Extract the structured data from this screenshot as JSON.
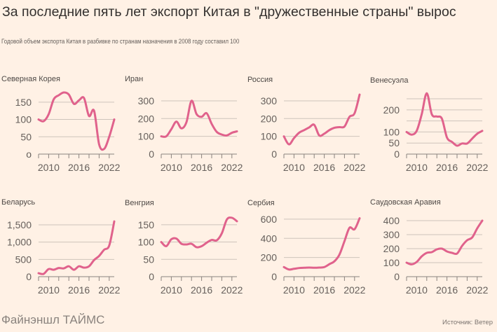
{
  "title": "За последние пять лет экспорт Китая в \"дружественные страны\" вырос",
  "subtitle": "Годовой объем экспорта Китая в разбивке по странам назначения в 2008 году составил 100",
  "brand": "Файнэншл ТАЙМС",
  "source": "Источник: Ветер",
  "colors": {
    "line": "#E0628C",
    "grid": "#CEC4BB",
    "background": "#FFF1E5"
  },
  "chart_data": [
    {
      "type": "line",
      "title": "Северная Корея",
      "x": [
        2008,
        2009,
        2010,
        2011,
        2012,
        2013,
        2014,
        2015,
        2016,
        2017,
        2018,
        2019,
        2020,
        2021,
        2022,
        2023
      ],
      "values": [
        100,
        95,
        115,
        158,
        170,
        178,
        172,
        145,
        155,
        162,
        110,
        125,
        28,
        15,
        50,
        100
      ],
      "yticks": [
        0,
        50,
        100,
        150
      ],
      "ytick_labels": [
        "o",
        "50",
        "100",
        "150"
      ],
      "grid": [
        50,
        100,
        150
      ],
      "ylim": [
        0,
        182
      ],
      "xtick_labels": [
        "2010",
        "2016",
        "2022"
      ]
    },
    {
      "type": "line",
      "title": "Иран",
      "x": [
        2008,
        2009,
        2010,
        2011,
        2012,
        2013,
        2014,
        2015,
        2016,
        2017,
        2018,
        2019,
        2020,
        2021,
        2022,
        2023
      ],
      "values": [
        100,
        100,
        140,
        183,
        145,
        180,
        300,
        225,
        210,
        230,
        170,
        125,
        110,
        105,
        120,
        128
      ],
      "yticks": [
        0,
        100,
        200,
        300
      ],
      "ytick_labels": [
        "0",
        "100",
        "200",
        "300"
      ],
      "grid": [
        100,
        200,
        300
      ],
      "ylim": [
        0,
        355
      ],
      "xtick_labels": [
        "2010",
        "2016",
        "2022"
      ]
    },
    {
      "type": "line",
      "title": "Россия",
      "x": [
        2008,
        2009,
        2010,
        2011,
        2012,
        2013,
        2014,
        2015,
        2016,
        2017,
        2018,
        2019,
        2020,
        2021,
        2022,
        2023
      ],
      "values": [
        100,
        55,
        90,
        120,
        135,
        150,
        165,
        105,
        115,
        135,
        148,
        152,
        155,
        210,
        230,
        335
      ],
      "yticks": [
        0,
        100,
        200,
        300
      ],
      "ytick_labels": [
        "0",
        "100",
        "200",
        "300"
      ],
      "grid": [
        100,
        200,
        300
      ],
      "ylim": [
        0,
        355
      ],
      "xtick_labels": [
        "2010",
        "2016",
        "2022"
      ]
    },
    {
      "type": "line",
      "title": "Венесуэла",
      "x": [
        2008,
        2009,
        2010,
        2011,
        2012,
        2013,
        2014,
        2015,
        2016,
        2017,
        2018,
        2019,
        2020,
        2021,
        2022,
        2023
      ],
      "values": [
        100,
        88,
        105,
        180,
        275,
        180,
        170,
        160,
        75,
        55,
        38,
        48,
        48,
        70,
        92,
        105
      ],
      "yticks": [
        0,
        50,
        100,
        200
      ],
      "ytick_labels": [
        "0",
        "50",
        "100",
        "200"
      ],
      "grid": [
        50,
        100,
        150,
        200,
        250
      ],
      "ylim": [
        0,
        285
      ],
      "xtick_labels": [
        "2010",
        "2016",
        "2022"
      ]
    },
    {
      "type": "line",
      "title": "Беларусь",
      "x": [
        2008,
        2009,
        2010,
        2011,
        2012,
        2013,
        2014,
        2015,
        2016,
        2017,
        2018,
        2019,
        2020,
        2021,
        2022,
        2023
      ],
      "values": [
        100,
        80,
        220,
        200,
        250,
        240,
        300,
        200,
        300,
        260,
        300,
        480,
        600,
        780,
        900,
        1600
      ],
      "yticks": [
        0,
        500,
        1000,
        1500
      ],
      "ytick_labels": [
        "0",
        "500",
        "1,000",
        "1,500"
      ],
      "grid": [
        500,
        1000,
        1500
      ],
      "ylim": [
        0,
        1824
      ],
      "xtick_labels": [
        "2010",
        "2016",
        "2022"
      ]
    },
    {
      "type": "line",
      "title": "Венгрия",
      "x": [
        2008,
        2009,
        2010,
        2011,
        2012,
        2013,
        2014,
        2015,
        2016,
        2017,
        2018,
        2019,
        2020,
        2021,
        2022,
        2023
      ],
      "values": [
        100,
        88,
        108,
        110,
        95,
        93,
        95,
        85,
        88,
        98,
        106,
        105,
        125,
        165,
        170,
        160
      ],
      "yticks": [
        0,
        50,
        100,
        150
      ],
      "ytick_labels": [
        "0",
        "50",
        "100",
        "150"
      ],
      "grid": [
        50,
        100,
        150
      ],
      "ylim": [
        0,
        182
      ],
      "xtick_labels": [
        "2010",
        "2016",
        "2022"
      ]
    },
    {
      "type": "line",
      "title": "Сербия",
      "x": [
        2008,
        2009,
        2010,
        2011,
        2012,
        2013,
        2014,
        2015,
        2016,
        2017,
        2018,
        2019,
        2020,
        2021,
        2022,
        2023
      ],
      "values": [
        100,
        75,
        82,
        90,
        93,
        95,
        93,
        95,
        100,
        130,
        160,
        230,
        370,
        510,
        495,
        610
      ],
      "yticks": [
        0,
        200,
        400,
        600
      ],
      "ytick_labels": [
        "0",
        "200",
        "400",
        "600"
      ],
      "grid": [
        200,
        400,
        600
      ],
      "ylim": [
        0,
        658
      ],
      "xtick_labels": [
        "2010",
        "2016",
        "2022"
      ]
    },
    {
      "type": "line",
      "title": "Саудовская Аравия",
      "x": [
        2008,
        2009,
        2010,
        2011,
        2012,
        2013,
        2014,
        2015,
        2016,
        2017,
        2018,
        2019,
        2020,
        2021,
        2022,
        2023
      ],
      "values": [
        100,
        88,
        105,
        145,
        170,
        175,
        195,
        200,
        180,
        170,
        165,
        220,
        260,
        280,
        345,
        400
      ],
      "yticks": [
        0,
        100,
        200,
        300,
        400
      ],
      "ytick_labels": [
        "0",
        "100",
        "200",
        "300",
        "400"
      ],
      "grid": [
        100,
        200,
        300,
        400
      ],
      "ylim": [
        0,
        450
      ],
      "xtick_labels": [
        "2010",
        "2016",
        "2022"
      ]
    }
  ]
}
